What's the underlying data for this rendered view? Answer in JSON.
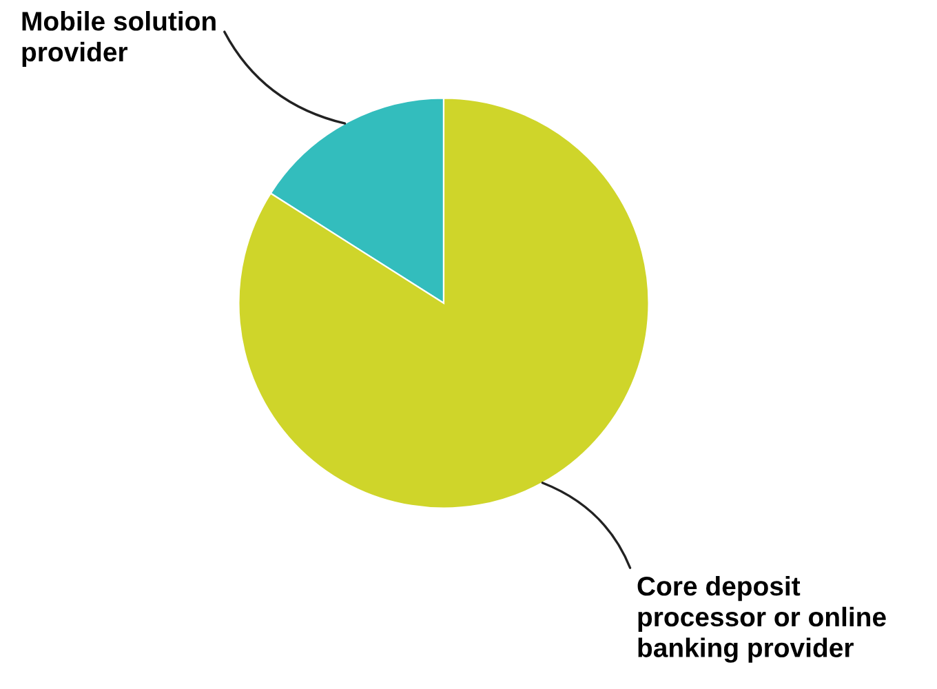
{
  "chart_data": {
    "type": "pie",
    "categories": [
      "Mobile solution\nprovider",
      "Core deposit\nprocessor or online\nbanking provider"
    ],
    "values": [
      16,
      84
    ],
    "colors": [
      "#33bdbd",
      "#cfd52a"
    ]
  }
}
